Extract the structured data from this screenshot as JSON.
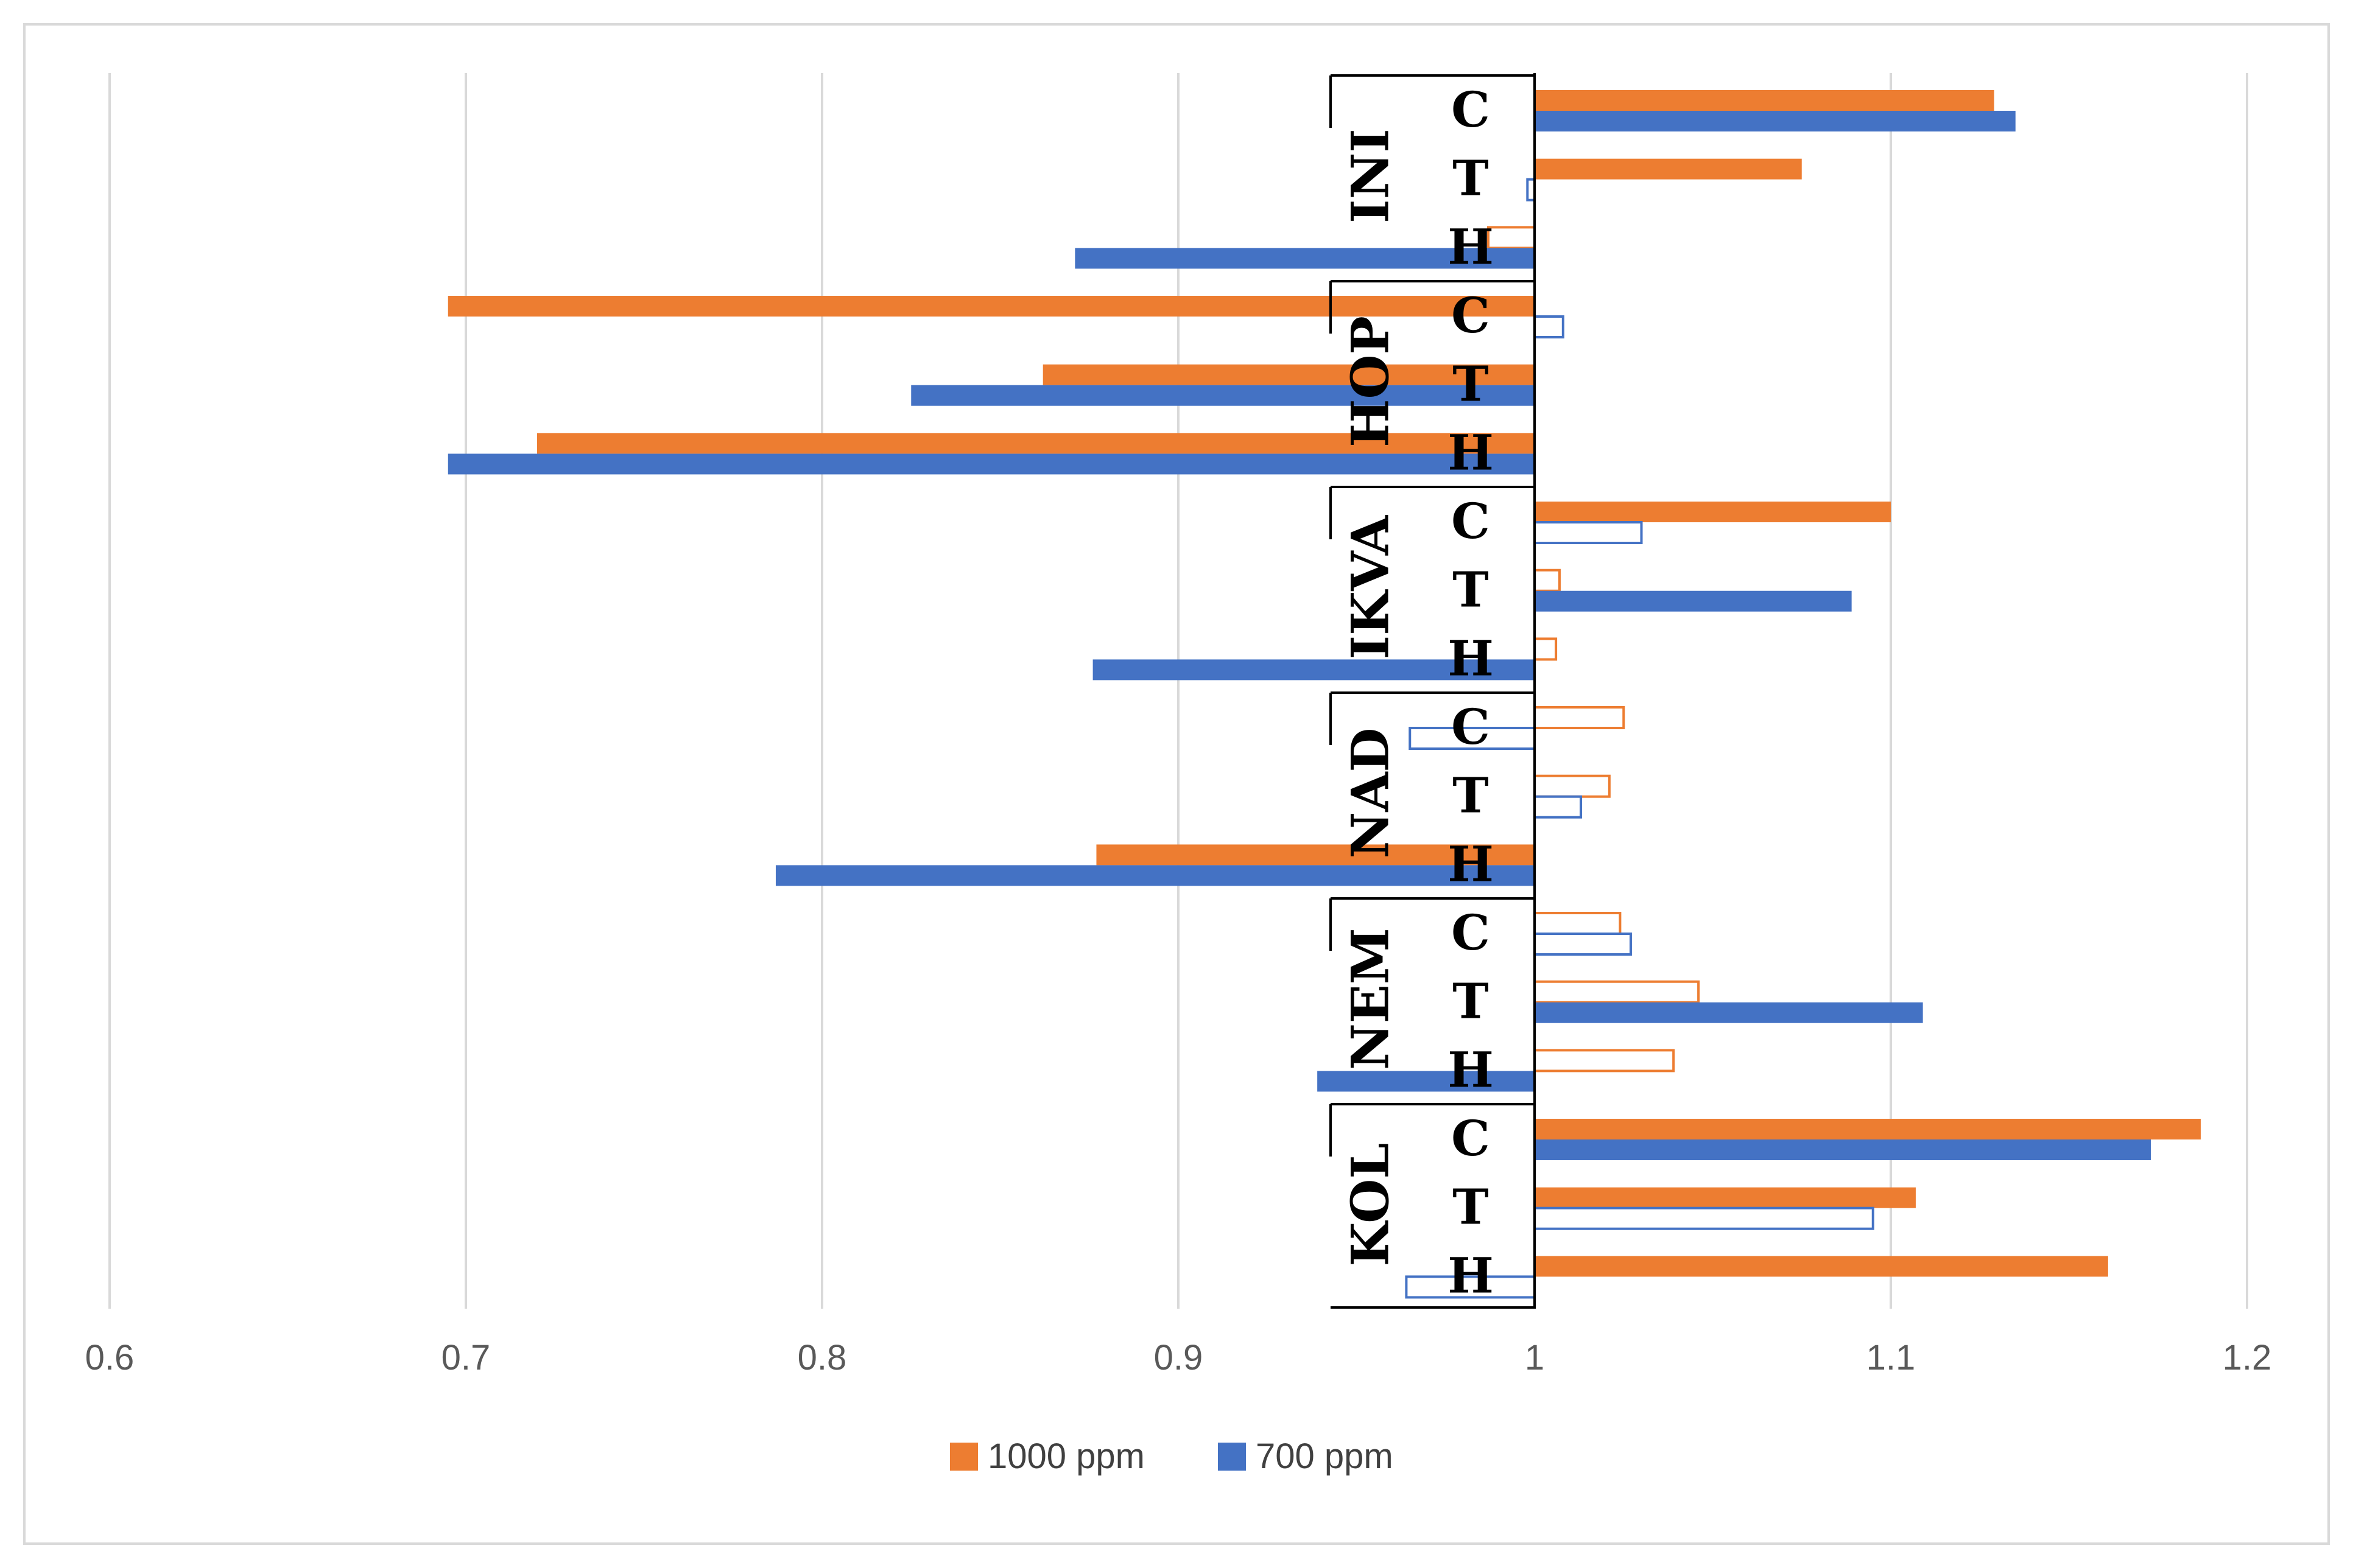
{
  "chart_data": {
    "type": "bar",
    "orientation": "horizontal",
    "baseline": 1,
    "title": "",
    "xlabel": "",
    "ylabel": "",
    "xlim": [
      0.6,
      1.2
    ],
    "x_ticks": [
      "0.6",
      "0.7",
      "0.8",
      "0.9",
      "1",
      "1.1",
      "1.2"
    ],
    "grid": "vertical",
    "legend_position": "bottom",
    "colors": {
      "1000 ppm": "#ED7D31",
      "700 ppm": "#4472C4"
    },
    "series": [
      {
        "name": "1000 ppm",
        "color": "#ED7D31"
      },
      {
        "name": "700 ppm",
        "color": "#4472C4"
      }
    ],
    "groups": [
      {
        "name": "INI",
        "categories": [
          {
            "name": "C",
            "1000 ppm": 1.129,
            "700 ppm": 1.135,
            "filled_1000": true,
            "filled_700": true
          },
          {
            "name": "T",
            "1000 ppm": 1.075,
            "700 ppm": 0.998,
            "filled_1000": true,
            "filled_700": false
          },
          {
            "name": "H",
            "1000 ppm": 0.987,
            "700 ppm": 0.871,
            "filled_1000": false,
            "filled_700": true
          }
        ]
      },
      {
        "name": "HOP",
        "categories": [
          {
            "name": "C",
            "1000 ppm": 0.695,
            "700 ppm": 1.008,
            "filled_1000": true,
            "filled_700": false
          },
          {
            "name": "T",
            "1000 ppm": 0.862,
            "700 ppm": 0.825,
            "filled_1000": true,
            "filled_700": true
          },
          {
            "name": "H",
            "1000 ppm": 0.72,
            "700 ppm": 0.695,
            "filled_1000": true,
            "filled_700": true
          }
        ]
      },
      {
        "name": "IKVA",
        "categories": [
          {
            "name": "C",
            "1000 ppm": 1.1,
            "700 ppm": 1.03,
            "filled_1000": true,
            "filled_700": false
          },
          {
            "name": "T",
            "1000 ppm": 1.007,
            "700 ppm": 1.089,
            "filled_1000": false,
            "filled_700": true
          },
          {
            "name": "H",
            "1000 ppm": 1.006,
            "700 ppm": 0.876,
            "filled_1000": false,
            "filled_700": true
          }
        ]
      },
      {
        "name": "NAD",
        "categories": [
          {
            "name": "C",
            "1000 ppm": 1.025,
            "700 ppm": 0.965,
            "filled_1000": false,
            "filled_700": false
          },
          {
            "name": "T",
            "1000 ppm": 1.021,
            "700 ppm": 1.013,
            "filled_1000": false,
            "filled_700": false
          },
          {
            "name": "H",
            "1000 ppm": 0.877,
            "700 ppm": 0.787,
            "filled_1000": true,
            "filled_700": true
          }
        ]
      },
      {
        "name": "NEM",
        "categories": [
          {
            "name": "C",
            "1000 ppm": 1.024,
            "700 ppm": 1.027,
            "filled_1000": false,
            "filled_700": false
          },
          {
            "name": "T",
            "1000 ppm": 1.046,
            "700 ppm": 1.109,
            "filled_1000": false,
            "filled_700": true
          },
          {
            "name": "H",
            "1000 ppm": 1.039,
            "700 ppm": 0.939,
            "filled_1000": false,
            "filled_700": true
          }
        ]
      },
      {
        "name": "KOL",
        "categories": [
          {
            "name": "C",
            "1000 ppm": 1.187,
            "700 ppm": 1.173,
            "filled_1000": true,
            "filled_700": true
          },
          {
            "name": "T",
            "1000 ppm": 1.107,
            "700 ppm": 1.095,
            "filled_1000": true,
            "filled_700": false
          },
          {
            "name": "H",
            "1000 ppm": 1.161,
            "700 ppm": 0.964,
            "filled_1000": true,
            "filled_700": false
          }
        ]
      }
    ]
  }
}
